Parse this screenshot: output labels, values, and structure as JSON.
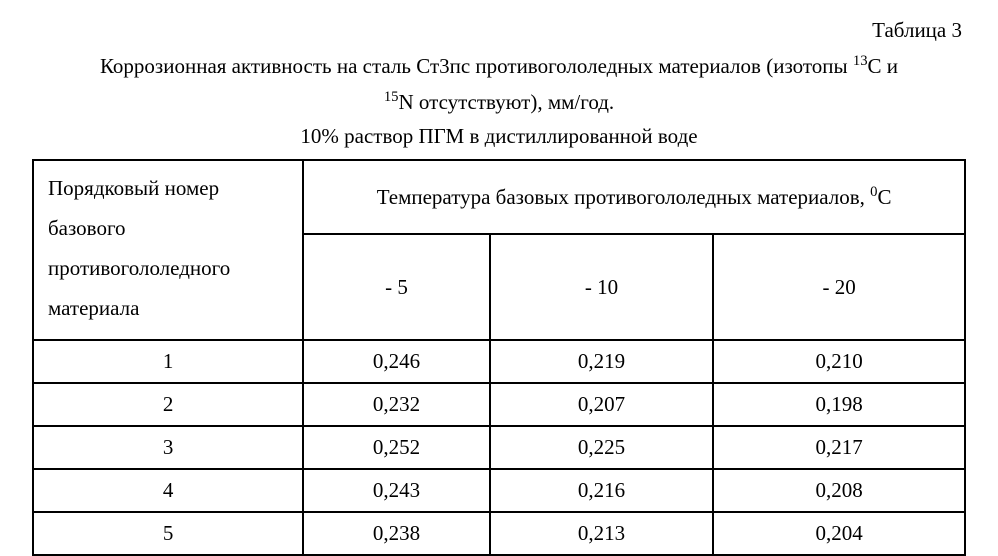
{
  "label": "Таблица 3",
  "caption_line1_a": "Коррозионная активность на сталь Ст3пс противогололедных материалов (изотопы ",
  "caption_sup1": "13",
  "caption_mid1": "С и",
  "caption_sup2": "15",
  "caption_mid2": "N отсутствуют), мм/год.",
  "subcaption": "10% раствор ПГМ в дистиллированной воде",
  "header_rowhead": "Порядковый номер базового противогололедного материала",
  "header_span_a": "Температура базовых противогололедных материалов, ",
  "header_span_sup": "0",
  "header_span_b": "С",
  "temps": [
    "- 5",
    "- 10",
    "- 20"
  ],
  "rows": [
    {
      "n": "1",
      "v": [
        "0,246",
        "0,219",
        "0,210"
      ]
    },
    {
      "n": "2",
      "v": [
        "0,232",
        "0,207",
        "0,198"
      ]
    },
    {
      "n": "3",
      "v": [
        "0,252",
        "0,225",
        "0,217"
      ]
    },
    {
      "n": "4",
      "v": [
        "0,243",
        "0,216",
        "0,208"
      ]
    },
    {
      "n": "5",
      "v": [
        "0,238",
        "0,213",
        "0,204"
      ]
    }
  ],
  "style": {
    "font_family": "Times New Roman",
    "font_size_pt": 16,
    "border_color": "#000000",
    "background_color": "#ffffff",
    "text_color": "#000000",
    "col_widths_pct": [
      29,
      20,
      24,
      27
    ]
  }
}
